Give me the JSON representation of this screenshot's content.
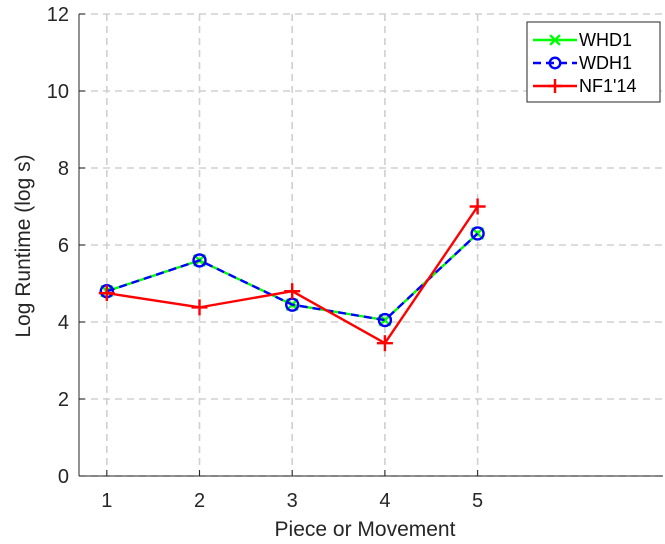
{
  "chart_data": {
    "type": "line",
    "xlabel": "Piece or Movement",
    "ylabel": "Log Runtime (log s)",
    "x": [
      1,
      2,
      3,
      4,
      5
    ],
    "xlim": [
      0.7,
      7.0
    ],
    "ylim": [
      0,
      12
    ],
    "xticks": [
      "1",
      "2",
      "3",
      "4",
      "5"
    ],
    "yticks": [
      "0",
      "2",
      "4",
      "6",
      "8",
      "10",
      "12"
    ],
    "grid": true,
    "legend_position": "top-right",
    "series": [
      {
        "name": "WHD1",
        "values": [
          4.8,
          5.6,
          4.45,
          4.05,
          6.3
        ],
        "color": "#00ff00",
        "marker": "x",
        "style": "solid"
      },
      {
        "name": "WDH1",
        "values": [
          4.8,
          5.6,
          4.45,
          4.05,
          6.3
        ],
        "color": "#0000ff",
        "marker": "o",
        "style": "dashed"
      },
      {
        "name": "NF1'14",
        "values": [
          4.75,
          4.38,
          4.8,
          3.45,
          7.0
        ],
        "color": "#ff0000",
        "marker": "+",
        "style": "solid"
      }
    ]
  }
}
